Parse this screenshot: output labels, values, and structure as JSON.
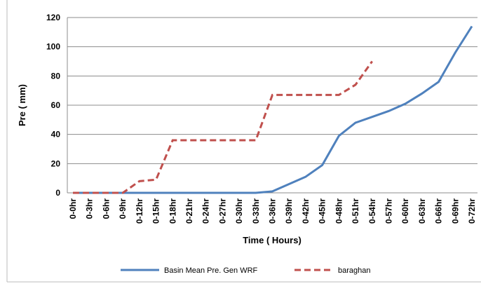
{
  "chart_data": {
    "type": "line",
    "x_label": "Time ( Hours)",
    "y_label": "Pre ( mm)",
    "categories": [
      "0-0hr",
      "0-3hr",
      "0-6hr",
      "0-9hr",
      "0-12hr",
      "0-15hr",
      "0-18hr",
      "0-21hr",
      "0-24hr",
      "0-27hr",
      "0-30hr",
      "0-33hr",
      "0-36hr",
      "0-39hr",
      "0-42hr",
      "0-45hr",
      "0-48hr",
      "0-51hr",
      "0-54hr",
      "0-57hr",
      "0-60hr",
      "0-63hr",
      "0-66hr",
      "0-69hr",
      "0-72hr"
    ],
    "series": [
      {
        "name": "Basin Mean Pre. Gen WRF",
        "color": "#4f81bd",
        "dash": false,
        "values": [
          0,
          0,
          0,
          0,
          0,
          0,
          0,
          0,
          0,
          0,
          0,
          0,
          1,
          6,
          11,
          19,
          39,
          48,
          52,
          56,
          61,
          68,
          76,
          96,
          114
        ]
      },
      {
        "name": "baraghan",
        "color": "#c0504d",
        "dash": true,
        "values": [
          0,
          0,
          0,
          0,
          8,
          9,
          36,
          36,
          36,
          36,
          36,
          36,
          67,
          67,
          67,
          67,
          67,
          74,
          90,
          null,
          null,
          null,
          null,
          null,
          null
        ]
      }
    ],
    "ylim": [
      0,
      120
    ],
    "yticks": [
      0,
      20,
      40,
      60,
      80,
      100,
      120
    ],
    "grid": true,
    "legend": "bottom"
  }
}
